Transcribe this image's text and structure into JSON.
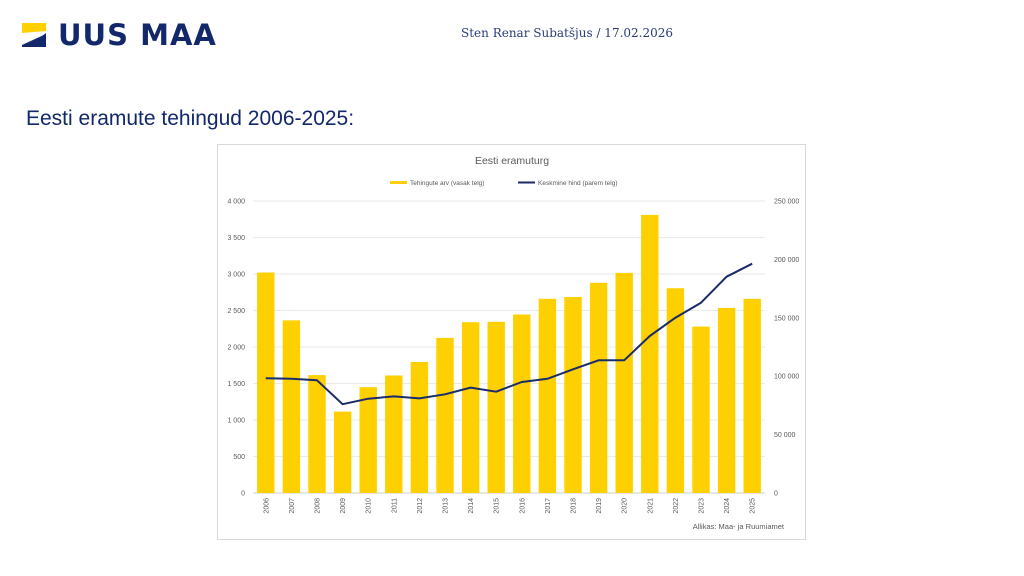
{
  "header": {
    "logo_text": "UUS MAA",
    "byline": "Sten Renar Subatšjus / 17.02.2026"
  },
  "page": {
    "title": "Eesti eramute tehingud 2006-2025:"
  },
  "colors": {
    "brand_blue": "#12286b",
    "bar_yellow": "#ffd000",
    "line_navy": "#1a2a6a",
    "grid": "#e3e3e3"
  },
  "chart_data": {
    "type": "bar",
    "title": "Eesti eramuturg",
    "source": "Allikas: Maa- ja Ruumiamet",
    "categories": [
      "2006",
      "2007",
      "2008",
      "2009",
      "2010",
      "2011",
      "2012",
      "2013",
      "2014",
      "2015",
      "2016",
      "2017",
      "2018",
      "2019",
      "2020",
      "2021",
      "2022",
      "2023",
      "2024",
      "2025"
    ],
    "series": [
      {
        "name": "Tehingute arv (vasak telg)",
        "type": "bar",
        "axis": "left",
        "values": [
          3020,
          2365,
          1615,
          1115,
          1450,
          1610,
          1795,
          2125,
          2340,
          2345,
          2445,
          2660,
          2685,
          2880,
          3015,
          3810,
          2805,
          2280,
          2535,
          2660
        ]
      },
      {
        "name": "Keskmine hind (parem telg)",
        "type": "line",
        "axis": "right",
        "values": [
          98200,
          97800,
          96500,
          76000,
          80700,
          82700,
          81000,
          84500,
          90200,
          86700,
          95000,
          97800,
          105900,
          113600,
          113600,
          134400,
          150100,
          162900,
          185200,
          196300
        ]
      }
    ],
    "left_axis": {
      "ylim": [
        0,
        4000
      ],
      "ticks": [
        0,
        500,
        1000,
        1500,
        2000,
        2500,
        3000,
        3500,
        4000
      ],
      "tick_labels": [
        "0",
        "500",
        "1 000",
        "1 500",
        "2 000",
        "2 500",
        "3 000",
        "3 500",
        "4 000"
      ]
    },
    "right_axis": {
      "ylim": [
        0,
        250000
      ],
      "ticks": [
        0,
        50000,
        100000,
        150000,
        200000,
        250000
      ],
      "tick_labels": [
        "0",
        "50 000",
        "100 000",
        "150 000",
        "200 000",
        "250 000"
      ]
    },
    "legend_position": "top-center",
    "grid": true,
    "xlabel": "",
    "ylabel": ""
  }
}
